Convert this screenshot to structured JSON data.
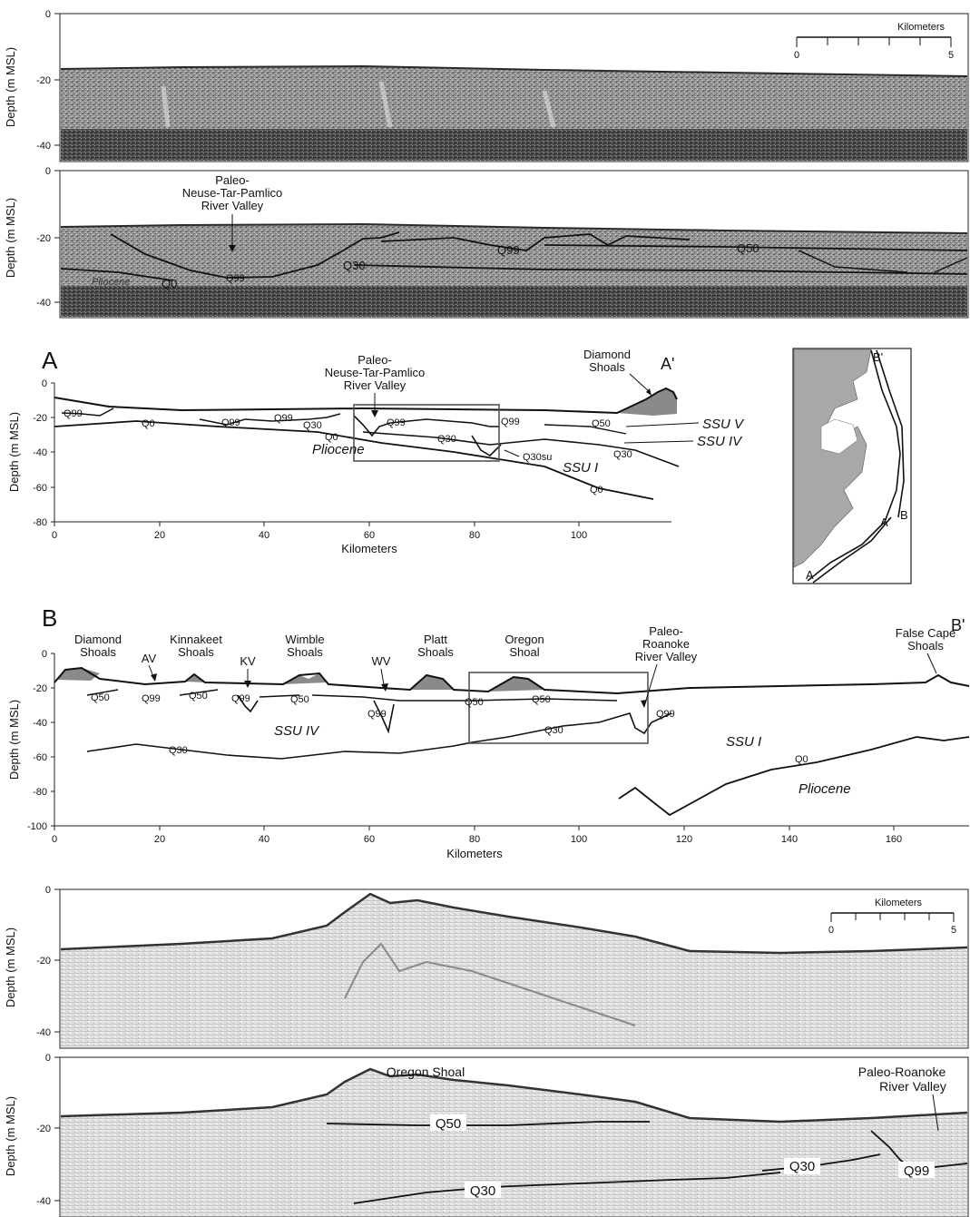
{
  "axes": {
    "depth_label": "Depth (m MSL)",
    "km_label": "Kilometers",
    "seismic_depth_ticks": [
      "0",
      "-20",
      "-40"
    ],
    "section_a_depth_ticks": [
      "0",
      "-20",
      "-40",
      "-60",
      "-80"
    ],
    "section_a_km_ticks": [
      "0",
      "20",
      "40",
      "60",
      "80",
      "100"
    ],
    "section_b_depth_ticks": [
      "0",
      "-20",
      "-40",
      "-60",
      "-80",
      "-100"
    ],
    "section_b_km_ticks": [
      "0",
      "20",
      "40",
      "60",
      "80",
      "100",
      "120",
      "140",
      "160"
    ]
  },
  "scale_bar": {
    "label": "Kilometers",
    "start": "0",
    "end": "5"
  },
  "panel_top": {
    "valley_label": [
      "Paleo-",
      "Neuse-Tar-Pamlico",
      "River Valley"
    ],
    "horizons": {
      "q99_a": "Q99",
      "q99_b": "Q99",
      "q50": "Q50",
      "q30": "Q30",
      "q0": "Q0",
      "pliocene": "Pliocene"
    }
  },
  "section_a": {
    "letter": "A",
    "end_letter": "A'",
    "diamond_shoals": [
      "Diamond",
      "Shoals"
    ],
    "valley_label": [
      "Paleo-",
      "Neuse-Tar-Pamlico",
      "River Valley"
    ],
    "units": {
      "ssu_v": "SSU V",
      "ssu_iv": "SSU IV",
      "ssu_i": "SSU I",
      "pliocene": "Pliocene"
    },
    "horizons": {
      "q99_1": "Q99",
      "q99_2": "Q99",
      "q99_3": "Q99",
      "q99_4": "Q99",
      "q99_5": "Q99",
      "q0_1": "Q0",
      "q0_2": "Q0",
      "q0_3": "Q0",
      "q30_1": "Q30",
      "q30_2": "Q30",
      "q30_3": "Q30",
      "q50": "Q50",
      "q30su": "Q30su"
    }
  },
  "inset_map": {
    "b_prime": "B'",
    "a_prime": "A'",
    "b": "B",
    "a": "A"
  },
  "section_b": {
    "letter": "B",
    "end_letter": "B'",
    "shoals": {
      "diamond": [
        "Diamond",
        "Shoals"
      ],
      "kinnakeet": [
        "Kinnakeet",
        "Shoals"
      ],
      "wimble": [
        "Wimble",
        "Shoals"
      ],
      "platt": [
        "Platt",
        "Shoals"
      ],
      "oregon": [
        "Oregon",
        "Shoal"
      ],
      "false_cape": [
        "False Cape",
        "Shoals"
      ]
    },
    "valleys": {
      "av": "AV",
      "kv": "KV",
      "wv": "WV"
    },
    "paleo_roanoke": [
      "Paleo-",
      "Roanoke",
      "River Valley"
    ],
    "units": {
      "ssu_iv": "SSU IV",
      "ssu_i": "SSU I",
      "pliocene": "Pliocene"
    },
    "horizons": {
      "q50_1": "Q50",
      "q99_1": "Q99",
      "q50_2": "Q50",
      "q99_2": "Q99",
      "q50_3": "Q50",
      "q99_3": "Q99",
      "q50_4": "Q50",
      "q50_5": "Q50",
      "q30_1": "Q30",
      "q99_4": "Q99",
      "q30_2": "Q30",
      "q0": "Q0"
    }
  },
  "panel_bottom": {
    "oregon_shoal": "Oregon Shoal",
    "paleo_roanoke": [
      "Paleo-Roanoke",
      "River Valley"
    ],
    "horizons": {
      "q50": "Q50",
      "q30_a": "Q30",
      "q30_b": "Q30",
      "q99": "Q99"
    }
  }
}
